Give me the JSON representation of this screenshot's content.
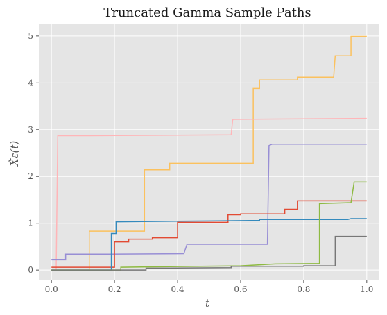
{
  "chart_data": {
    "type": "line",
    "title": "Truncated Gamma Sample Paths",
    "xlabel": "t",
    "ylabel": "X̂ε(t)",
    "xlim": [
      -0.04,
      1.04
    ],
    "ylim": [
      -0.22,
      5.25
    ],
    "x_ticks": [
      0.0,
      0.2,
      0.4,
      0.6,
      0.8,
      1.0
    ],
    "x_tick_labels": [
      "0.0",
      "0.2",
      "0.4",
      "0.6",
      "0.8",
      "1.0"
    ],
    "y_ticks": [
      0,
      1,
      2,
      3,
      4,
      5
    ],
    "y_tick_labels": [
      "0",
      "1",
      "2",
      "3",
      "4",
      "5"
    ],
    "grid": true,
    "background": "#e5e5e5",
    "series": [
      {
        "color": "#FBC15E",
        "points": [
          [
            0,
            0
          ],
          [
            0.12,
            0
          ],
          [
            0.12,
            0.83
          ],
          [
            0.295,
            0.83
          ],
          [
            0.295,
            2.14
          ],
          [
            0.375,
            2.14
          ],
          [
            0.375,
            2.28
          ],
          [
            0.64,
            2.28
          ],
          [
            0.64,
            3.88
          ],
          [
            0.66,
            3.88
          ],
          [
            0.66,
            4.06
          ],
          [
            0.78,
            4.06
          ],
          [
            0.78,
            4.12
          ],
          [
            0.895,
            4.12
          ],
          [
            0.9,
            4.58
          ],
          [
            0.95,
            4.58
          ],
          [
            0.95,
            4.99
          ],
          [
            1.0,
            4.99
          ]
        ]
      },
      {
        "color": "#FFB5B8",
        "points": [
          [
            0.015,
            0
          ],
          [
            0.02,
            2.87
          ],
          [
            0.1,
            2.87
          ],
          [
            0.57,
            2.89
          ],
          [
            0.575,
            3.22
          ],
          [
            1.0,
            3.24
          ]
        ]
      },
      {
        "color": "#988ED5",
        "points": [
          [
            0,
            0.22
          ],
          [
            0.045,
            0.22
          ],
          [
            0.045,
            0.34
          ],
          [
            0.18,
            0.34
          ],
          [
            0.42,
            0.35
          ],
          [
            0.43,
            0.55
          ],
          [
            0.685,
            0.55
          ],
          [
            0.69,
            2.66
          ],
          [
            0.7,
            2.69
          ],
          [
            1.0,
            2.69
          ]
        ]
      },
      {
        "color": "#E24A33",
        "points": [
          [
            0,
            0.06
          ],
          [
            0.2,
            0.06
          ],
          [
            0.2,
            0.6
          ],
          [
            0.245,
            0.6
          ],
          [
            0.245,
            0.66
          ],
          [
            0.32,
            0.66
          ],
          [
            0.32,
            0.69
          ],
          [
            0.4,
            0.69
          ],
          [
            0.4,
            1.02
          ],
          [
            0.56,
            1.02
          ],
          [
            0.56,
            1.18
          ],
          [
            0.6,
            1.18
          ],
          [
            0.6,
            1.2
          ],
          [
            0.74,
            1.2
          ],
          [
            0.74,
            1.3
          ],
          [
            0.78,
            1.3
          ],
          [
            0.78,
            1.48
          ],
          [
            1.0,
            1.48
          ]
        ]
      },
      {
        "color": "#348ABD",
        "points": [
          [
            0,
            0
          ],
          [
            0.19,
            0
          ],
          [
            0.19,
            0.78
          ],
          [
            0.205,
            0.78
          ],
          [
            0.205,
            1.03
          ],
          [
            0.5,
            1.05
          ],
          [
            0.66,
            1.06
          ],
          [
            0.66,
            1.08
          ],
          [
            0.94,
            1.08
          ],
          [
            0.95,
            1.1
          ],
          [
            1.0,
            1.1
          ]
        ]
      },
      {
        "color": "#8EBA42",
        "points": [
          [
            0,
            0
          ],
          [
            0.22,
            0
          ],
          [
            0.22,
            0.06
          ],
          [
            0.6,
            0.09
          ],
          [
            0.71,
            0.13
          ],
          [
            0.85,
            0.14
          ],
          [
            0.85,
            1.42
          ],
          [
            0.95,
            1.44
          ],
          [
            0.96,
            1.88
          ],
          [
            1.0,
            1.88
          ]
        ]
      },
      {
        "color": "#777777",
        "points": [
          [
            0,
            0
          ],
          [
            0.3,
            0
          ],
          [
            0.3,
            0.04
          ],
          [
            0.57,
            0.05
          ],
          [
            0.57,
            0.08
          ],
          [
            0.8,
            0.08
          ],
          [
            0.8,
            0.09
          ],
          [
            0.9,
            0.09
          ],
          [
            0.9,
            0.72
          ],
          [
            1.0,
            0.72
          ]
        ]
      }
    ]
  }
}
